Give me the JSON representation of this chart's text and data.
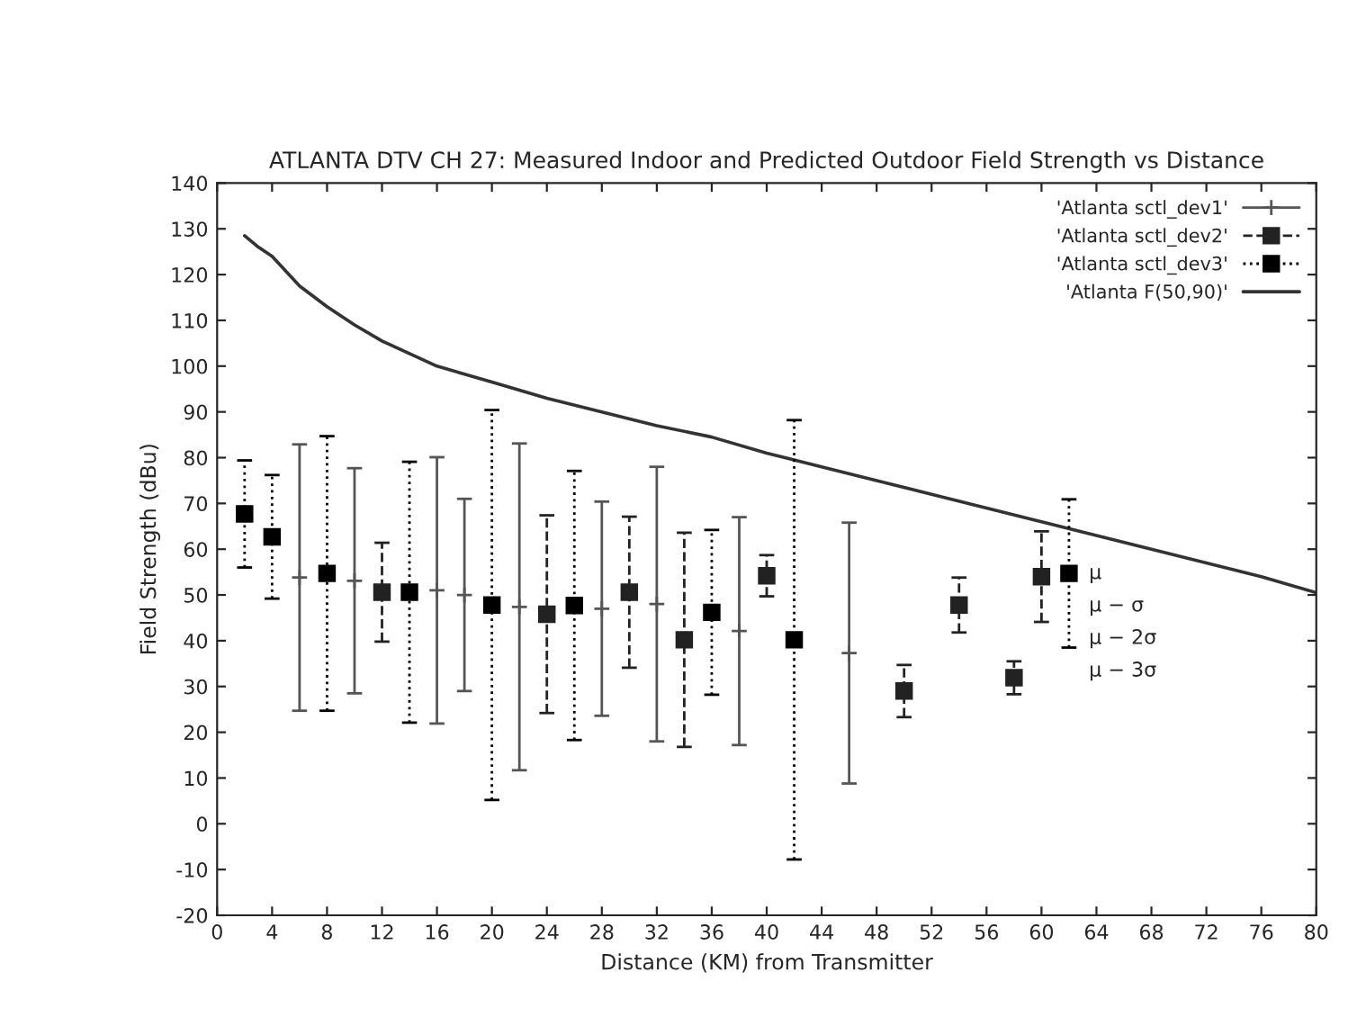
{
  "chart_data": {
    "type": "scatter",
    "title": "ATLANTA DTV CH 27: Measured Indoor and Predicted Outdoor Field Strength vs Distance",
    "xlabel": "Distance (KM) from Transmitter",
    "ylabel": "Field Strength (dBu)",
    "xlim": [
      0,
      80
    ],
    "xticks": [
      0,
      4,
      8,
      12,
      16,
      20,
      24,
      28,
      32,
      36,
      40,
      44,
      48,
      52,
      56,
      60,
      64,
      68,
      72,
      76,
      80
    ],
    "ylim": [
      -20,
      140
    ],
    "yticks": [
      -20,
      -10,
      0,
      10,
      20,
      30,
      40,
      50,
      60,
      70,
      80,
      90,
      100,
      110,
      120,
      130,
      140
    ],
    "legend": "top right",
    "series": [
      {
        "name": "'Atlanta sctl_dev1'",
        "color": "#555555",
        "line_style": "solid",
        "marker": "cross",
        "x": [
          6,
          10,
          16,
          18,
          22,
          28,
          32,
          38,
          46
        ],
        "values": [
          53.8,
          53.1,
          51,
          50,
          47.4,
          47,
          48,
          42.1,
          37.3
        ],
        "errors": [
          29.1,
          24.6,
          29.1,
          21,
          35.7,
          23.4,
          30,
          24.9,
          28.5
        ]
      },
      {
        "name": "'Atlanta sctl_dev2'",
        "color": "#222222",
        "line_style": "dashed",
        "marker": "square",
        "x": [
          12,
          24,
          30,
          34,
          40,
          50,
          54,
          58,
          60
        ],
        "values": [
          50.6,
          45.8,
          50.6,
          40.2,
          54.2,
          29,
          47.8,
          31.9,
          54
        ],
        "errors": [
          10.8,
          21.6,
          16.5,
          23.4,
          4.5,
          5.7,
          6,
          3.6,
          9.9
        ]
      },
      {
        "name": "'Atlanta sctl_dev3'",
        "color": "#000000",
        "line_style": "dotted",
        "marker": "square",
        "x": [
          2,
          4,
          8,
          14,
          20,
          26,
          36,
          42,
          62
        ],
        "values": [
          67.7,
          62.7,
          54.7,
          50.6,
          47.8,
          47.7,
          46.2,
          40.2,
          54.7
        ],
        "errors": [
          11.7,
          13.5,
          30,
          28.5,
          42.6,
          29.4,
          18,
          48,
          16.2
        ]
      },
      {
        "name": "'Atlanta F(50,90)'",
        "type": "line",
        "color": "#333333",
        "line_style": "solid",
        "marker": "none",
        "x": [
          2,
          3,
          4,
          6,
          8,
          10,
          12,
          16,
          20,
          24,
          28,
          32,
          36,
          40,
          44,
          48,
          52,
          56,
          60,
          64,
          68,
          72,
          76,
          80
        ],
        "values": [
          128.5,
          126,
          124,
          117.5,
          113,
          109,
          105.5,
          100,
          96.5,
          93,
          90,
          87,
          84.5,
          81,
          78,
          75,
          72,
          69,
          66,
          63,
          60,
          57,
          54,
          50.5
        ]
      }
    ],
    "annotations": [
      "μ",
      "μ − σ",
      "μ − 2σ",
      "μ − 3σ"
    ]
  }
}
